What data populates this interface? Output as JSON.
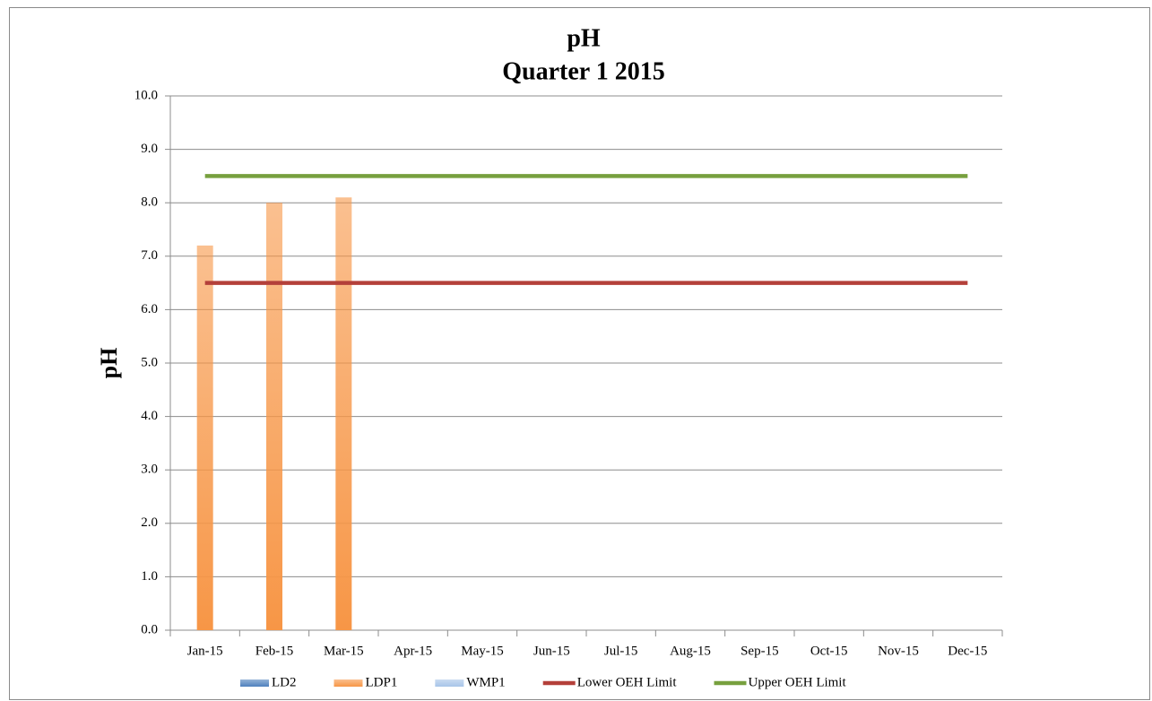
{
  "chart_data": {
    "type": "bar",
    "title": "pH",
    "subtitle": "Quarter 1 2015",
    "y_label": "pH",
    "categories": [
      "Jan-15",
      "Feb-15",
      "Mar-15",
      "Apr-15",
      "May-15",
      "Jun-15",
      "Jul-15",
      "Aug-15",
      "Sep-15",
      "Oct-15",
      "Nov-15",
      "Dec-15"
    ],
    "series": [
      {
        "name": "LD2",
        "type": "bar",
        "color": "#4f81bd",
        "values": [
          null,
          null,
          null,
          null,
          null,
          null,
          null,
          null,
          null,
          null,
          null,
          null
        ]
      },
      {
        "name": "LDP1",
        "type": "bar",
        "color": "#f79646",
        "values": [
          7.2,
          8.0,
          8.1,
          null,
          null,
          null,
          null,
          null,
          null,
          null,
          null,
          null
        ]
      },
      {
        "name": "WMP1",
        "type": "bar",
        "color": "#a7c4e8",
        "values": [
          null,
          null,
          null,
          null,
          null,
          null,
          null,
          null,
          null,
          null,
          null,
          null
        ]
      },
      {
        "name": "Lower OEH Limit",
        "type": "line",
        "color": "#b4403a",
        "values": [
          6.5,
          6.5,
          6.5,
          6.5,
          6.5,
          6.5,
          6.5,
          6.5,
          6.5,
          6.5,
          6.5,
          6.5
        ]
      },
      {
        "name": "Upper OEH Limit",
        "type": "line",
        "color": "#77a03e",
        "values": [
          8.5,
          8.5,
          8.5,
          8.5,
          8.5,
          8.5,
          8.5,
          8.5,
          8.5,
          8.5,
          8.5,
          8.5
        ]
      }
    ],
    "ylim": [
      0,
      10
    ],
    "yticks": [
      {
        "value": 0,
        "label": "0.0"
      },
      {
        "value": 1,
        "label": "1.0"
      },
      {
        "value": 2,
        "label": "2.0"
      },
      {
        "value": 3,
        "label": "3.0"
      },
      {
        "value": 4,
        "label": "4.0"
      },
      {
        "value": 5,
        "label": "5.0"
      },
      {
        "value": 6,
        "label": "6.0"
      },
      {
        "value": 7,
        "label": "7.0"
      },
      {
        "value": 8,
        "label": "8.0"
      },
      {
        "value": 9,
        "label": "9.0"
      },
      {
        "value": 10,
        "label": "10.0"
      }
    ],
    "grid": true,
    "legend": "bottom"
  }
}
